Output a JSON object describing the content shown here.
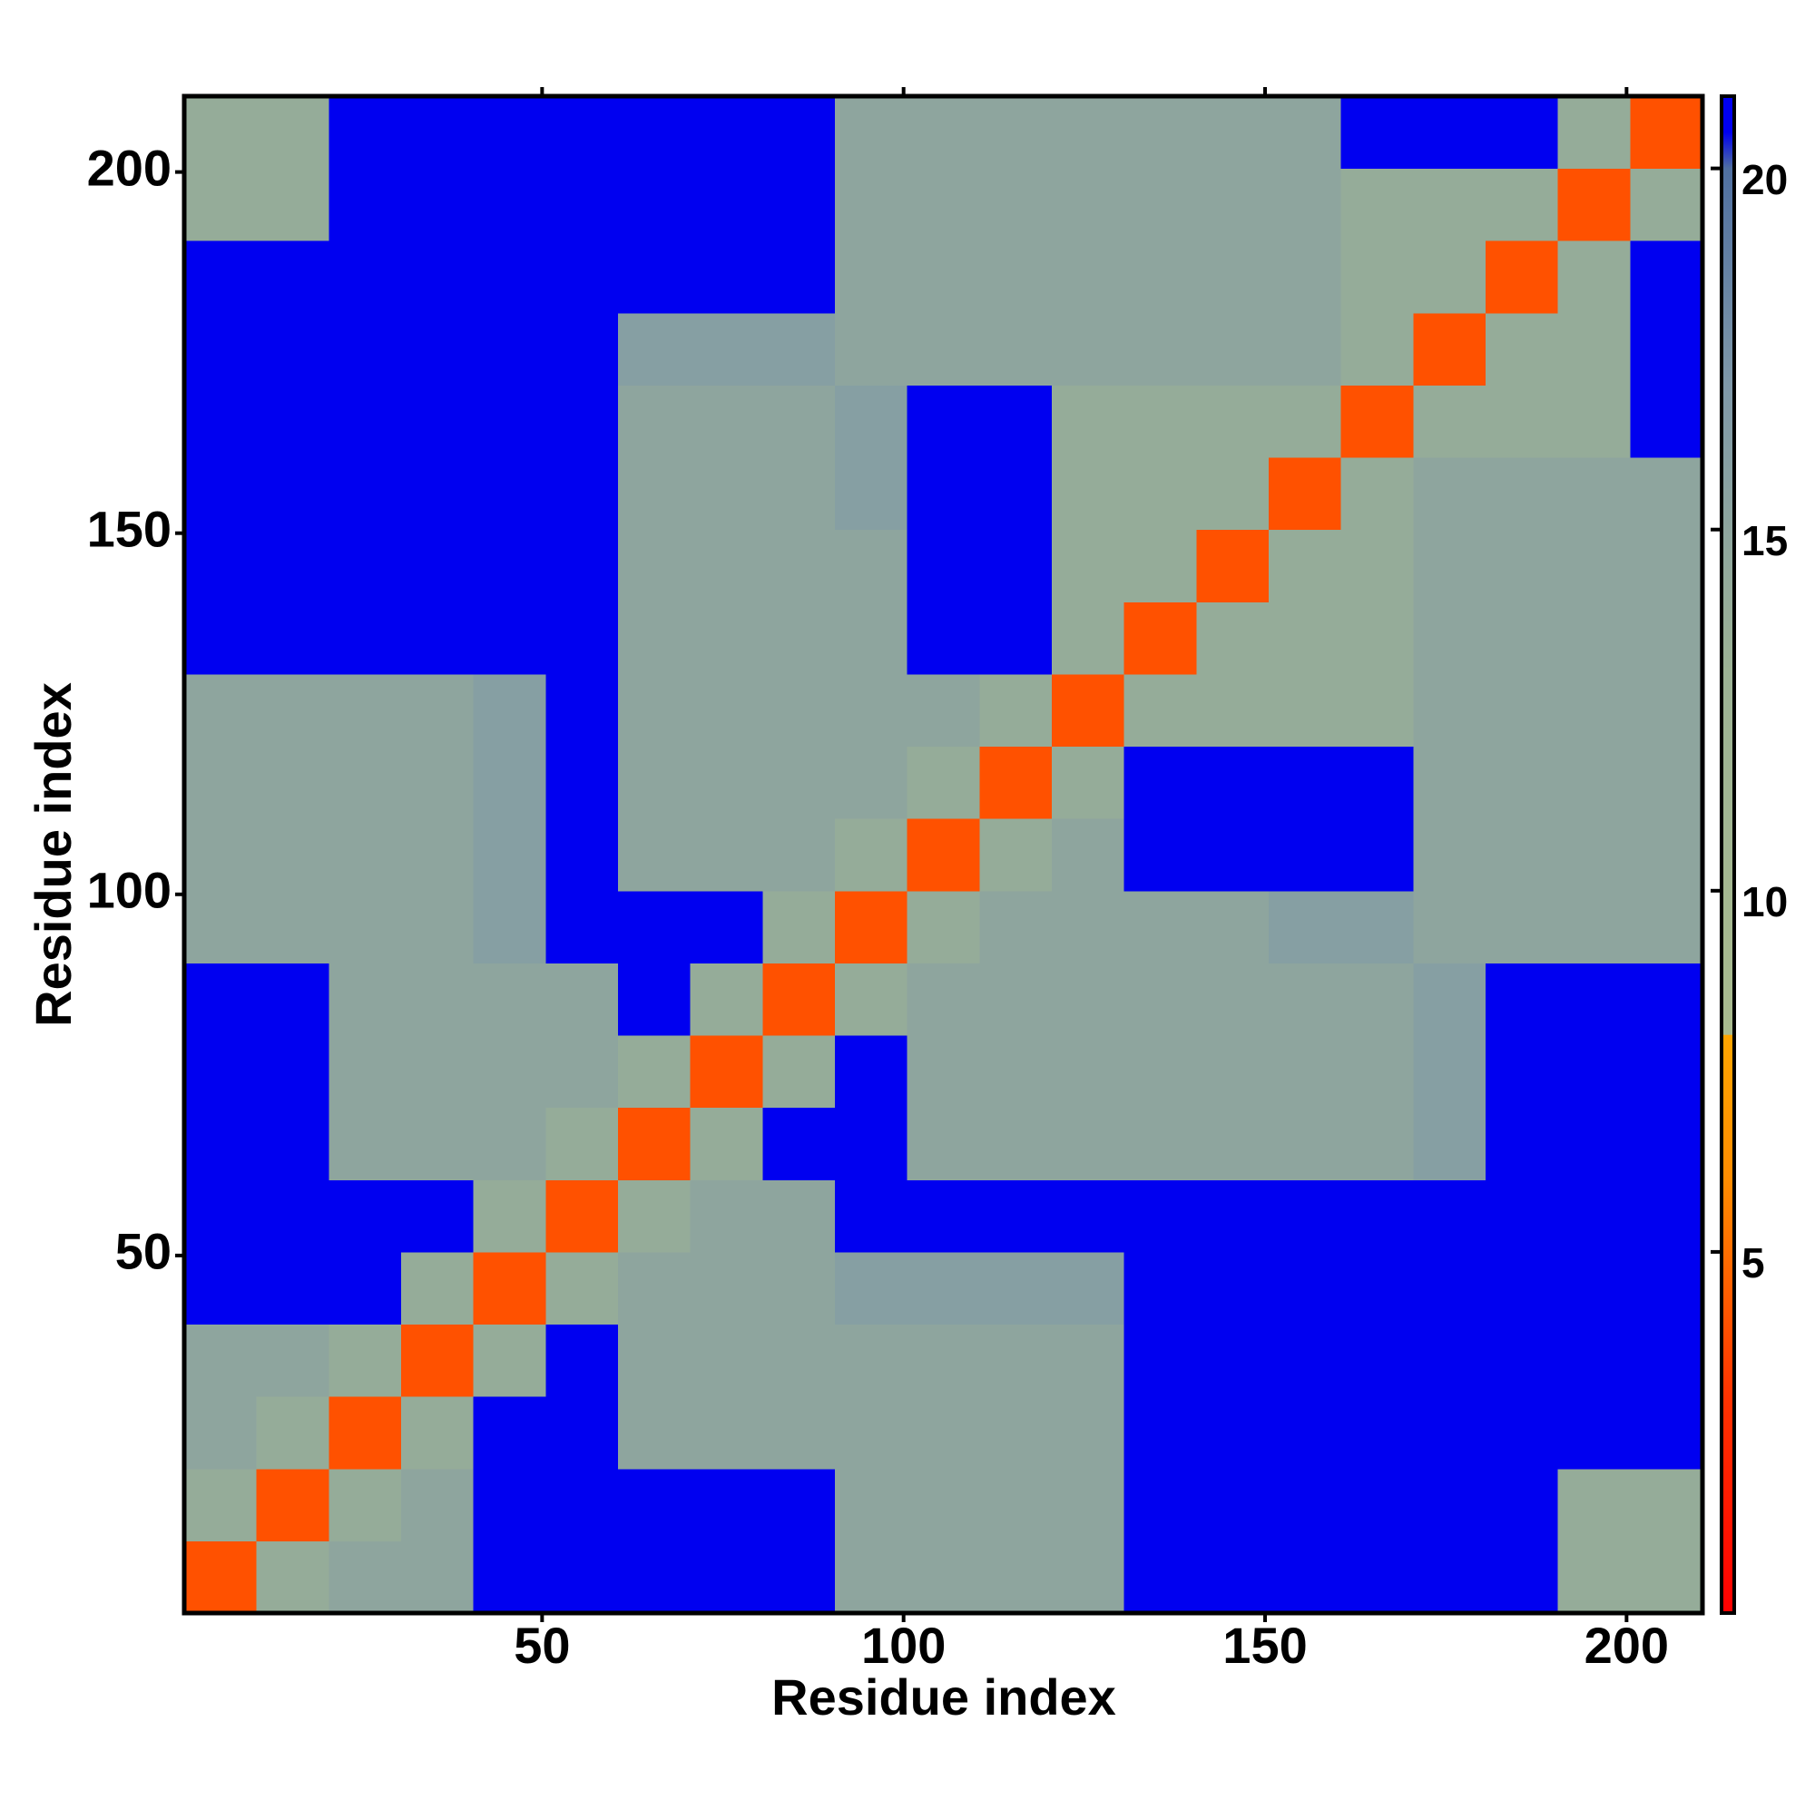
{
  "chart_data": {
    "type": "heatmap",
    "x_label": "Residue index",
    "y_label": "Residue index",
    "x": [
      5.5,
      15.5,
      25.5,
      35.5,
      45.5,
      55.5,
      65.5,
      75.5,
      85.5,
      95.5,
      105.5,
      115.5,
      125.5,
      135.5,
      145.5,
      155.5,
      165.5,
      175.5,
      185.5,
      195.5,
      205.5
    ],
    "y": [
      5.5,
      15.5,
      25.5,
      35.5,
      45.5,
      55.5,
      65.5,
      75.5,
      85.5,
      95.5,
      105.5,
      115.5,
      125.5,
      135.5,
      145.5,
      155.5,
      165.5,
      175.5,
      185.5,
      195.5,
      205.5
    ],
    "z": [
      [
        4,
        14,
        15,
        15,
        21,
        21,
        21,
        21,
        21,
        15,
        15,
        15,
        15,
        21,
        21,
        21,
        21,
        21,
        21,
        14,
        14
      ],
      [
        14,
        4,
        14,
        15,
        21,
        21,
        21,
        21,
        21,
        15,
        15,
        15,
        15,
        21,
        21,
        21,
        21,
        21,
        21,
        14,
        14
      ],
      [
        15,
        14,
        4,
        14,
        21,
        21,
        15,
        15,
        15,
        15,
        15,
        15,
        15,
        21,
        21,
        21,
        21,
        21,
        21,
        21,
        21
      ],
      [
        15,
        15,
        14,
        4,
        14,
        21,
        15,
        15,
        15,
        15,
        15,
        15,
        15,
        21,
        21,
        21,
        21,
        21,
        21,
        21,
        21
      ],
      [
        21,
        21,
        21,
        14,
        4,
        14,
        15,
        15,
        15,
        16,
        16,
        16,
        16,
        21,
        21,
        21,
        21,
        21,
        21,
        21,
        21
      ],
      [
        21,
        21,
        21,
        21,
        14,
        4,
        14,
        15,
        15,
        21,
        21,
        21,
        21,
        21,
        21,
        21,
        21,
        21,
        21,
        21,
        21
      ],
      [
        21,
        21,
        15,
        15,
        15,
        14,
        4,
        14,
        21,
        21,
        15,
        15,
        15,
        15,
        15,
        15,
        15,
        16,
        21,
        21,
        21
      ],
      [
        21,
        21,
        15,
        15,
        15,
        15,
        14,
        4,
        14,
        21,
        15,
        15,
        15,
        15,
        15,
        15,
        15,
        16,
        21,
        21,
        21
      ],
      [
        21,
        21,
        15,
        15,
        15,
        15,
        21,
        14,
        4,
        14,
        15,
        15,
        15,
        15,
        15,
        15,
        15,
        16,
        21,
        21,
        21
      ],
      [
        15,
        15,
        15,
        15,
        16,
        21,
        21,
        21,
        14,
        4,
        14,
        15,
        15,
        15,
        15,
        16,
        16,
        15,
        15,
        15,
        15
      ],
      [
        15,
        15,
        15,
        15,
        16,
        21,
        15,
        15,
        15,
        14,
        4,
        14,
        15,
        21,
        21,
        21,
        21,
        15,
        15,
        15,
        15
      ],
      [
        15,
        15,
        15,
        15,
        16,
        21,
        15,
        15,
        15,
        15,
        14,
        4,
        14,
        21,
        21,
        21,
        21,
        15,
        15,
        15,
        15
      ],
      [
        15,
        15,
        15,
        15,
        16,
        21,
        15,
        15,
        15,
        15,
        15,
        14,
        4,
        14,
        14,
        14,
        14,
        15,
        15,
        15,
        15
      ],
      [
        21,
        21,
        21,
        21,
        21,
        21,
        15,
        15,
        15,
        15,
        21,
        21,
        14,
        4,
        14,
        14,
        14,
        15,
        15,
        15,
        15
      ],
      [
        21,
        21,
        21,
        21,
        21,
        21,
        15,
        15,
        15,
        15,
        21,
        21,
        14,
        14,
        4,
        14,
        14,
        15,
        15,
        15,
        15
      ],
      [
        21,
        21,
        21,
        21,
        21,
        21,
        15,
        15,
        15,
        16,
        21,
        21,
        14,
        14,
        14,
        4,
        14,
        15,
        15,
        15,
        15
      ],
      [
        21,
        21,
        21,
        21,
        21,
        21,
        15,
        15,
        15,
        16,
        21,
        21,
        14,
        14,
        14,
        14,
        4,
        14,
        14,
        14,
        21
      ],
      [
        21,
        21,
        21,
        21,
        21,
        21,
        16,
        16,
        16,
        15,
        15,
        15,
        15,
        15,
        15,
        15,
        14,
        4,
        14,
        14,
        21
      ],
      [
        21,
        21,
        21,
        21,
        21,
        21,
        21,
        21,
        21,
        15,
        15,
        15,
        15,
        15,
        15,
        15,
        14,
        14,
        4,
        14,
        21
      ],
      [
        14,
        14,
        21,
        21,
        21,
        21,
        21,
        21,
        21,
        15,
        15,
        15,
        15,
        15,
        15,
        15,
        14,
        14,
        14,
        4,
        14
      ],
      [
        14,
        14,
        21,
        21,
        21,
        21,
        21,
        21,
        21,
        15,
        15,
        15,
        15,
        15,
        15,
        15,
        21,
        21,
        21,
        14,
        4
      ]
    ],
    "xlim": [
      0.5,
      210.5
    ],
    "ylim": [
      0.5,
      210.5
    ],
    "xticks": [
      50,
      100,
      150,
      200
    ],
    "yticks": [
      50,
      100,
      150,
      200
    ],
    "clim": [
      0,
      21
    ],
    "cticks": [
      5,
      10,
      15,
      20
    ],
    "colormap": [
      {
        "value": 0,
        "color": "#ff0000"
      },
      {
        "value": 3,
        "color": "#ff3300"
      },
      {
        "value": 6,
        "color": "#ff8c00"
      },
      {
        "value": 8,
        "color": "#ffa500"
      },
      {
        "value": 8.01,
        "color": "#a9bb8f"
      },
      {
        "value": 13,
        "color": "#9cb294"
      },
      {
        "value": 17,
        "color": "#7f98a8"
      },
      {
        "value": 20,
        "color": "#4f6fa0"
      },
      {
        "value": 20.5,
        "color": "#0000f0"
      },
      {
        "value": 21,
        "color": "#0000f0"
      }
    ]
  }
}
